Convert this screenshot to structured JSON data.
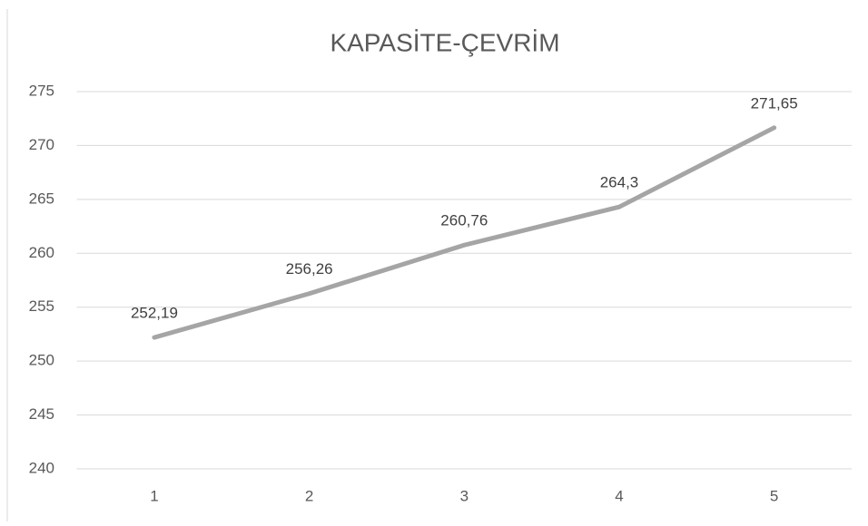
{
  "chart_data": {
    "type": "line",
    "title": "KAPASİTE-ÇEVRİM",
    "categories": [
      "1",
      "2",
      "3",
      "4",
      "5"
    ],
    "values": [
      252.19,
      256.26,
      260.76,
      264.3,
      271.65
    ],
    "value_labels": [
      "252,19",
      "256,26",
      "260,76",
      "264,3",
      "271,65"
    ],
    "color": "#a5a5a5",
    "ylim": [
      240,
      275
    ],
    "yticks": [
      240,
      245,
      250,
      255,
      260,
      265,
      270,
      275
    ],
    "grid": true
  }
}
